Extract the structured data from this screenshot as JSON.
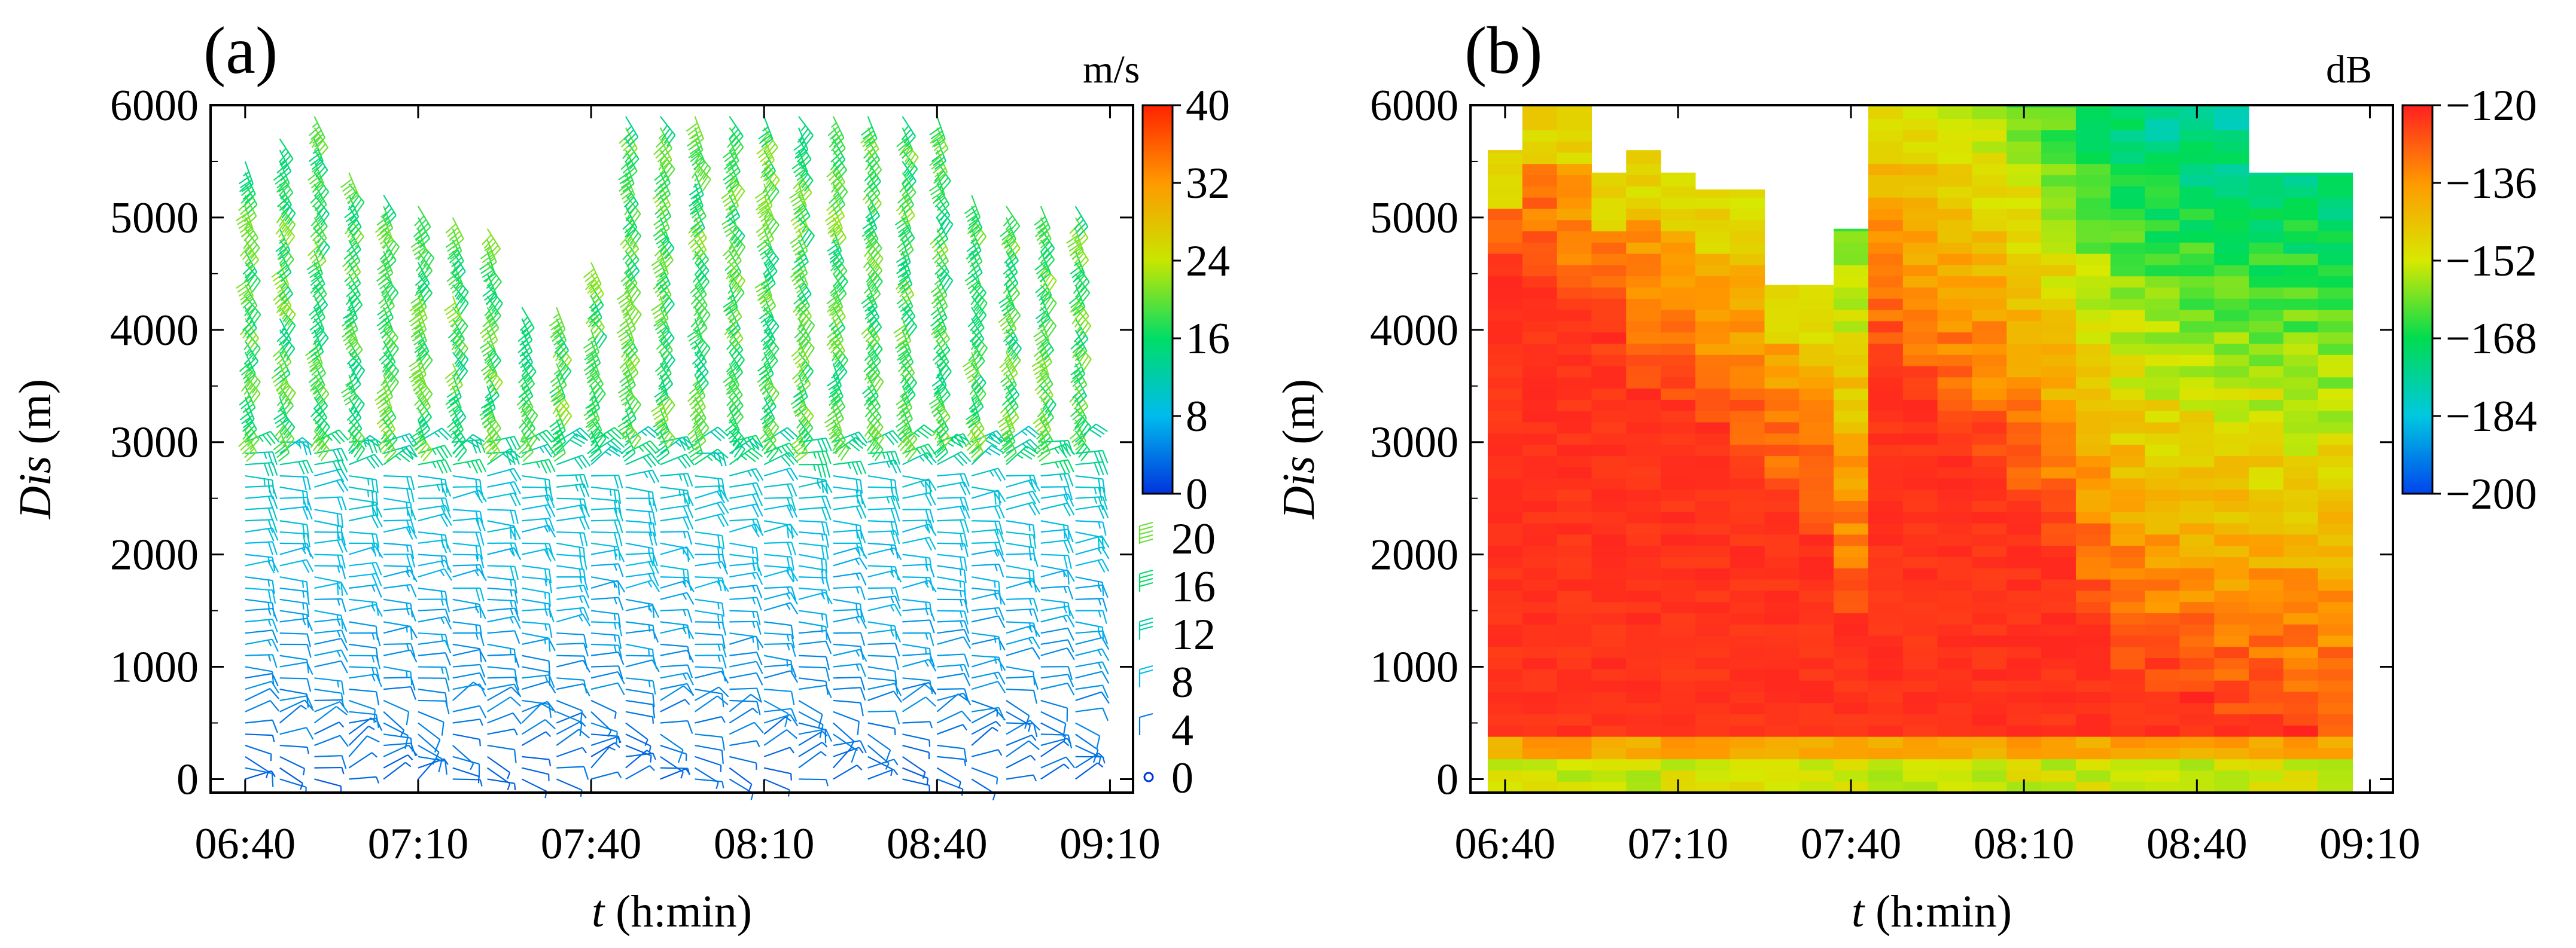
{
  "chart_data": [
    {
      "panel_label": "(a)",
      "type": "wind-barb",
      "title": "",
      "xlabel_italic": "t",
      "xlabel_rest": " (h:min)",
      "ylabel_italic": "Dis",
      "ylabel_rest": " (m)",
      "x_ticks": [
        "06:40",
        "07:10",
        "07:40",
        "08:10",
        "08:40",
        "09:10"
      ],
      "x_tick_minutes": [
        400,
        430,
        460,
        490,
        520,
        550
      ],
      "xlim_minutes": [
        394,
        554
      ],
      "y_ticks": [
        "0",
        "1000",
        "2000",
        "3000",
        "4000",
        "5000",
        "6000"
      ],
      "ylim": [
        -120,
        6000
      ],
      "colorbar": {
        "unit": "m/s",
        "min": 0,
        "max": 40,
        "tick_labels": [
          "0",
          "8",
          "16",
          "24",
          "32",
          "40"
        ],
        "colors": [
          "#0033dd",
          "#00bbee",
          "#00dd66",
          "#c8e600",
          "#ff9900",
          "#ff2200"
        ]
      },
      "barb_legend": {
        "labels": [
          "0",
          "4",
          "8",
          "12",
          "16",
          "20"
        ],
        "values": [
          0,
          4,
          8,
          12,
          16,
          20
        ]
      },
      "profile_times_minutes": [
        400,
        406,
        412,
        418,
        424,
        430,
        436,
        442,
        448,
        454,
        460,
        466,
        472,
        478,
        484,
        490,
        496,
        502,
        508,
        514,
        520,
        526,
        532,
        538,
        544
      ],
      "top_heights_m": [
        5500,
        5700,
        5900,
        5400,
        5250,
        5150,
        5050,
        4950,
        4250,
        4200,
        4650,
        5900,
        5900,
        5900,
        5900,
        5900,
        5900,
        5900,
        5900,
        5900,
        5900,
        5200,
        5150,
        5100,
        5100
      ],
      "lower_layer": {
        "top_m": 2750,
        "direction": "westerly (barbs pointing east)",
        "speed_range_ms": [
          2,
          10
        ]
      },
      "upper_layer": {
        "base_m": 3000,
        "direction": "northwesterly (barbs pointing south-east)",
        "speed_range_ms": [
          14,
          22
        ]
      }
    },
    {
      "panel_label": "(b)",
      "type": "heatmap",
      "title": "",
      "xlabel_italic": "t",
      "xlabel_rest": " (h:min)",
      "ylabel_italic": "Dis",
      "ylabel_rest": " (m)",
      "x_ticks": [
        "06:40",
        "07:10",
        "07:40",
        "08:10",
        "08:40",
        "09:10"
      ],
      "x_tick_minutes": [
        400,
        430,
        460,
        490,
        520,
        550
      ],
      "xlim_minutes": [
        394,
        554
      ],
      "y_ticks": [
        "0",
        "1000",
        "2000",
        "3000",
        "4000",
        "5000",
        "6000"
      ],
      "ylim": [
        -120,
        6000
      ],
      "colorbar": {
        "unit": "dB",
        "min": -200,
        "max": -120,
        "tick_labels": [
          "−200",
          "−184",
          "−168",
          "−152",
          "−136",
          "−120"
        ],
        "colors": [
          "#0044ee",
          "#00c8e0",
          "#00dc50",
          "#d8e800",
          "#ff9900",
          "#ff2020"
        ]
      },
      "profile_times_minutes": [
        400,
        406,
        412,
        418,
        424,
        430,
        436,
        442,
        448,
        454,
        460,
        466,
        472,
        478,
        484,
        490,
        496,
        502,
        508,
        514,
        520,
        526,
        532,
        538,
        544
      ],
      "top_heights_m": [
        5600,
        6000,
        6000,
        5400,
        5600,
        5400,
        5250,
        5250,
        4400,
        4400,
        4900,
        6000,
        6000,
        6000,
        6000,
        6000,
        6000,
        6000,
        6000,
        6000,
        6000,
        6000,
        5400,
        5400,
        5400
      ],
      "red_core_top_m": [
        4400,
        4300,
        4000,
        3700,
        3400,
        3150,
        2900,
        2700,
        2400,
        2000,
        1300,
        3600,
        3300,
        3000,
        2700,
        2400,
        1900,
        1300,
        900,
        700,
        600,
        500,
        400,
        350,
        300
      ],
      "lowest_layer_dB": -152,
      "upper_fringe_dB": -148
    }
  ]
}
